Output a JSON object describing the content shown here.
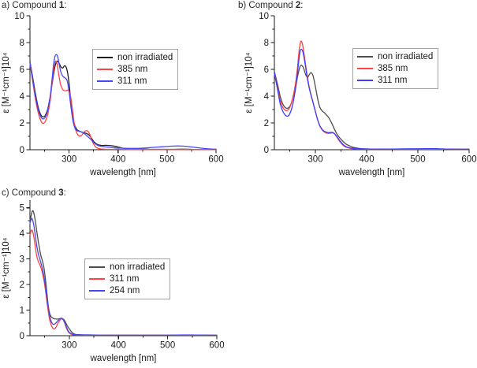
{
  "figure": {
    "background": "#ffffff",
    "axis_color": "#1a1a1a",
    "text_color": "#1a1a1a",
    "legend_border_color": "#a3a3a3"
  },
  "chart_data": [
    {
      "type": "line",
      "panel": "a",
      "title_prefix": "a) Compound ",
      "title_number": "1",
      "title_suffix": ":",
      "xlabel": "wavelength [nm]",
      "ylabel": "ε [M⁻¹cm⁻¹]10⁴",
      "xlim": [
        220,
        600
      ],
      "ylim": [
        0,
        10
      ],
      "xticks": [
        300,
        400,
        500,
        600
      ],
      "xticks_minor": [
        250,
        350,
        450,
        550
      ],
      "yticks": [
        0,
        2,
        4,
        6,
        8,
        10
      ],
      "yticks_minor": [
        1,
        3,
        5,
        7,
        9
      ],
      "legend_position": "upper center inside",
      "grid": false,
      "series": [
        {
          "name": "non irradiated",
          "color": "#1f1f1f",
          "x": [
            220,
            226,
            232,
            238,
            243,
            247,
            251,
            256,
            261,
            266,
            271,
            275,
            279,
            283,
            287,
            290,
            294,
            298,
            302,
            306,
            310,
            315,
            320,
            325,
            330,
            335,
            340,
            345,
            350,
            355,
            360,
            368,
            375,
            382,
            390,
            400,
            410,
            420,
            435,
            450,
            470,
            490,
            510,
            530,
            550,
            570,
            600
          ],
          "y": [
            6.55,
            5.3,
            4.0,
            3.0,
            2.55,
            2.45,
            2.55,
            3.0,
            3.9,
            5.1,
            6.2,
            6.6,
            6.5,
            6.2,
            6.1,
            6.25,
            6.15,
            5.5,
            4.2,
            2.9,
            2.0,
            1.55,
            1.4,
            1.32,
            1.27,
            1.22,
            1.12,
            0.9,
            0.62,
            0.45,
            0.36,
            0.32,
            0.33,
            0.32,
            0.28,
            0.2,
            0.12,
            0.07,
            0.05,
            0.04,
            0.03,
            0.03,
            0.03,
            0.04,
            0.03,
            0.02,
            0.02
          ]
        },
        {
          "name": "385 nm",
          "color": "#ff4343",
          "x": [
            220,
            226,
            232,
            238,
            243,
            247,
            251,
            256,
            261,
            265,
            269,
            272,
            275,
            278,
            282,
            286,
            290,
            294,
            298,
            302,
            306,
            310,
            314,
            318,
            322,
            326,
            330,
            334,
            338,
            342,
            346,
            350,
            355,
            360,
            365,
            372,
            380,
            395,
            420,
            460,
            500,
            550,
            600
          ],
          "y": [
            6.45,
            5.0,
            3.6,
            2.6,
            2.1,
            1.97,
            2.1,
            2.6,
            3.6,
            4.9,
            6.1,
            6.6,
            6.45,
            5.8,
            4.95,
            4.55,
            4.42,
            4.4,
            4.45,
            4.2,
            3.2,
            2.1,
            1.4,
            1.1,
            1.02,
            1.1,
            1.3,
            1.42,
            1.38,
            1.15,
            0.75,
            0.42,
            0.18,
            0.09,
            0.06,
            0.04,
            0.03,
            0.03,
            0.02,
            0.02,
            0.02,
            0.02,
            0.02
          ]
        },
        {
          "name": "311 nm",
          "color": "#4747ff",
          "x": [
            220,
            226,
            232,
            238,
            243,
            247,
            251,
            256,
            261,
            265,
            268,
            271,
            274,
            277,
            280,
            284,
            288,
            292,
            296,
            300,
            304,
            308,
            312,
            316,
            320,
            324,
            328,
            332,
            336,
            340,
            345,
            350,
            355,
            360,
            367,
            375,
            385,
            395,
            410,
            430,
            450,
            470,
            490,
            505,
            520,
            532,
            545,
            560,
            580,
            600
          ],
          "y": [
            6.5,
            5.15,
            3.8,
            2.85,
            2.4,
            2.3,
            2.42,
            2.9,
            3.9,
            5.2,
            6.3,
            6.95,
            7.1,
            6.9,
            6.3,
            5.7,
            5.45,
            5.35,
            5.15,
            4.3,
            3.1,
            2.1,
            1.6,
            1.42,
            1.38,
            1.35,
            1.28,
            1.18,
            1.05,
            0.92,
            0.75,
            0.55,
            0.4,
            0.3,
            0.24,
            0.21,
            0.17,
            0.13,
            0.11,
            0.1,
            0.12,
            0.17,
            0.22,
            0.26,
            0.28,
            0.27,
            0.23,
            0.16,
            0.08,
            0.04
          ]
        }
      ]
    },
    {
      "type": "line",
      "panel": "b",
      "title_prefix": "b) Compound ",
      "title_number": "2",
      "title_suffix": ":",
      "xlabel": "wavelength [nm]",
      "ylabel": "ε [M⁻¹cm⁻¹]10⁴",
      "xlim": [
        220,
        600
      ],
      "ylim": [
        0,
        10
      ],
      "xticks": [
        300,
        400,
        500,
        600
      ],
      "xticks_minor": [
        250,
        350,
        450,
        550
      ],
      "yticks": [
        0,
        2,
        4,
        6,
        8,
        10
      ],
      "yticks_minor": [
        1,
        3,
        5,
        7,
        9
      ],
      "legend_position": "upper right inside",
      "grid": false,
      "series": [
        {
          "name": "non irradiated",
          "color": "#4d4d4d",
          "x": [
            220,
            226,
            231,
            236,
            241,
            246,
            251,
            256,
            261,
            266,
            270,
            273,
            277,
            281,
            285,
            288,
            291,
            294,
            297,
            301,
            305,
            309,
            313,
            317,
            321,
            325,
            329,
            333,
            337,
            341,
            345,
            350,
            355,
            360,
            366,
            372,
            380,
            390,
            400,
            420,
            450,
            480,
            510,
            535,
            560,
            600
          ],
          "y": [
            5.85,
            4.9,
            4.05,
            3.45,
            3.15,
            3.1,
            3.3,
            3.85,
            4.7,
            5.6,
            6.2,
            6.3,
            6.1,
            5.6,
            5.42,
            5.6,
            5.75,
            5.65,
            5.3,
            4.5,
            3.7,
            3.15,
            2.9,
            2.78,
            2.62,
            2.45,
            2.2,
            1.9,
            1.55,
            1.25,
            1.0,
            0.78,
            0.58,
            0.42,
            0.3,
            0.2,
            0.13,
            0.08,
            0.06,
            0.05,
            0.05,
            0.05,
            0.06,
            0.06,
            0.04,
            0.03
          ]
        },
        {
          "name": "385 nm",
          "color": "#ff4343",
          "x": [
            220,
            226,
            231,
            236,
            241,
            246,
            251,
            256,
            261,
            265,
            268,
            271,
            274,
            277,
            281,
            285,
            289,
            293,
            297,
            301,
            305,
            309,
            313,
            317,
            321,
            325,
            329,
            333,
            337,
            341,
            345,
            350,
            355,
            360,
            367,
            375,
            385,
            400,
            430,
            470,
            510,
            540,
            570,
            600
          ],
          "y": [
            5.65,
            4.65,
            3.75,
            3.2,
            2.95,
            2.95,
            3.25,
            3.9,
            4.9,
            6.1,
            7.3,
            8.05,
            8.0,
            7.4,
            6.3,
            5.3,
            4.5,
            3.9,
            3.3,
            2.7,
            2.15,
            1.75,
            1.48,
            1.33,
            1.25,
            1.22,
            1.23,
            1.26,
            1.2,
            1.0,
            0.75,
            0.5,
            0.3,
            0.19,
            0.11,
            0.07,
            0.05,
            0.04,
            0.03,
            0.03,
            0.04,
            0.04,
            0.03,
            0.03
          ]
        },
        {
          "name": "311 nm",
          "color": "#3d3dff",
          "x": [
            220,
            226,
            231,
            236,
            241,
            245,
            249,
            254,
            259,
            263,
            267,
            270,
            273,
            276,
            280,
            284,
            288,
            292,
            296,
            300,
            304,
            308,
            312,
            316,
            320,
            324,
            328,
            332,
            336,
            340,
            345,
            350,
            355,
            360,
            367,
            375,
            385,
            400,
            430,
            460,
            490,
            515,
            535,
            560,
            600
          ],
          "y": [
            5.75,
            4.55,
            3.5,
            2.9,
            2.6,
            2.5,
            2.6,
            3.1,
            4.0,
            5.0,
            6.4,
            7.3,
            7.5,
            7.25,
            6.4,
            5.4,
            4.6,
            4.0,
            3.45,
            2.85,
            2.3,
            1.85,
            1.58,
            1.42,
            1.33,
            1.28,
            1.28,
            1.3,
            1.25,
            1.08,
            0.82,
            0.57,
            0.36,
            0.23,
            0.14,
            0.1,
            0.07,
            0.06,
            0.05,
            0.06,
            0.07,
            0.08,
            0.08,
            0.05,
            0.04
          ]
        }
      ]
    },
    {
      "type": "line",
      "panel": "c",
      "title_prefix": "c) Compound ",
      "title_number": "3",
      "title_suffix": ":",
      "xlabel": "wavelength [nm]",
      "ylabel": "ε [M⁻¹cm⁻¹]10⁴",
      "xlim": [
        220,
        600
      ],
      "ylim": [
        0,
        5.3
      ],
      "xticks": [
        300,
        400,
        500,
        600
      ],
      "xticks_minor": [
        250,
        350,
        450,
        550
      ],
      "yticks": [
        0,
        1,
        2,
        3,
        4,
        5
      ],
      "yticks_minor": [
        0.5,
        1.5,
        2.5,
        3.5,
        4.5
      ],
      "legend_position": "center left inside",
      "grid": false,
      "series": [
        {
          "name": "non irradiated",
          "color": "#4d4d4d",
          "x": [
            220,
            223,
            225,
            227,
            230,
            233,
            236,
            239,
            242,
            245,
            248,
            251,
            254,
            257,
            260,
            263,
            267,
            271,
            275,
            279,
            283,
            287,
            290,
            293,
            296,
            300,
            304,
            308,
            313,
            320,
            330,
            345,
            365,
            400,
            450,
            500,
            550,
            600
          ],
          "y": [
            4.5,
            4.75,
            4.88,
            4.85,
            4.6,
            4.2,
            3.8,
            3.45,
            3.15,
            2.95,
            2.7,
            2.3,
            1.75,
            1.2,
            0.88,
            0.75,
            0.68,
            0.66,
            0.65,
            0.66,
            0.68,
            0.66,
            0.6,
            0.5,
            0.38,
            0.27,
            0.16,
            0.09,
            0.05,
            0.04,
            0.03,
            0.03,
            0.02,
            0.02,
            0.02,
            0.02,
            0.02,
            0.02
          ]
        },
        {
          "name": "311 nm",
          "color": "#ff4343",
          "x": [
            220,
            223,
            225,
            228,
            231,
            234,
            237,
            240,
            243,
            246,
            249,
            252,
            255,
            258,
            261,
            264,
            267,
            270,
            273,
            276,
            279,
            282,
            285,
            288,
            291,
            294,
            297,
            300,
            305,
            310,
            320,
            340,
            370,
            420,
            480,
            540,
            600
          ],
          "y": [
            3.95,
            4.12,
            4.1,
            3.85,
            3.45,
            3.1,
            2.9,
            2.78,
            2.62,
            2.4,
            2.1,
            1.7,
            1.25,
            0.85,
            0.55,
            0.38,
            0.28,
            0.27,
            0.33,
            0.45,
            0.56,
            0.63,
            0.66,
            0.6,
            0.47,
            0.3,
            0.18,
            0.1,
            0.05,
            0.03,
            0.02,
            0.02,
            0.02,
            0.02,
            0.02,
            0.02,
            0.02
          ]
        },
        {
          "name": "254 nm",
          "color": "#4646ee",
          "x": [
            220,
            223,
            225,
            228,
            231,
            234,
            237,
            240,
            243,
            246,
            249,
            252,
            255,
            258,
            261,
            264,
            267,
            270,
            273,
            276,
            279,
            282,
            285,
            288,
            291,
            294,
            297,
            300,
            305,
            310,
            320,
            340,
            370,
            420,
            480,
            540,
            600
          ],
          "y": [
            4.4,
            4.58,
            4.55,
            4.3,
            3.9,
            3.5,
            3.2,
            3.0,
            2.8,
            2.55,
            2.25,
            1.85,
            1.4,
            1.0,
            0.7,
            0.52,
            0.45,
            0.45,
            0.5,
            0.57,
            0.63,
            0.67,
            0.68,
            0.62,
            0.5,
            0.35,
            0.22,
            0.13,
            0.07,
            0.04,
            0.03,
            0.03,
            0.02,
            0.02,
            0.02,
            0.03,
            0.02
          ]
        }
      ]
    }
  ]
}
